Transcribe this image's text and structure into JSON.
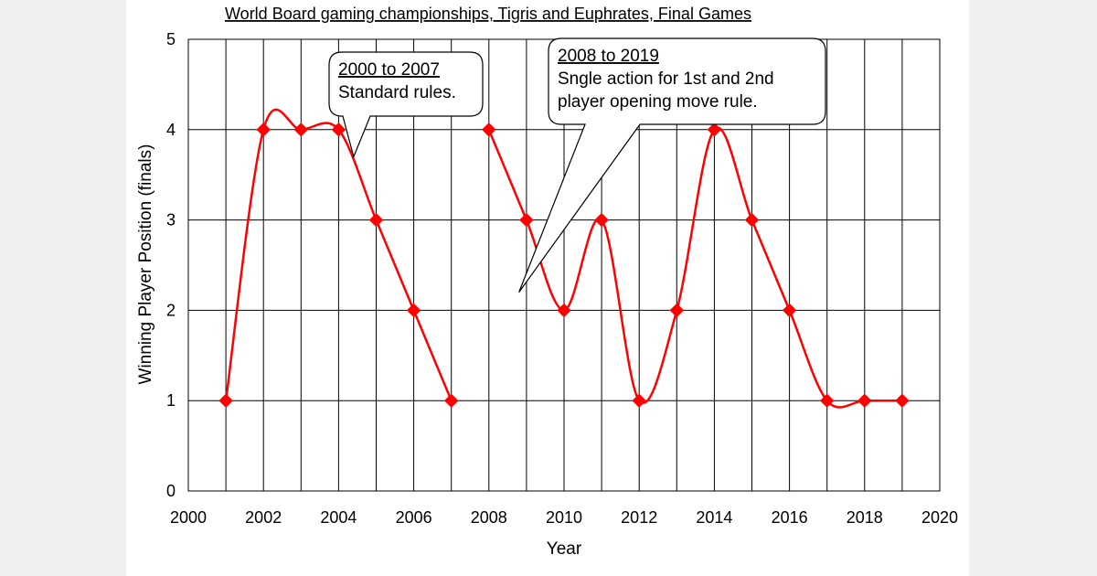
{
  "chart_data": {
    "type": "line",
    "title": "World Board gaming championships, Tigris and Euphrates, Final Games",
    "xlabel": "Year",
    "ylabel": "Winning Player Position (finals)",
    "xlim": [
      2000,
      2020
    ],
    "ylim": [
      0,
      5
    ],
    "xticks": [
      2000,
      2002,
      2004,
      2006,
      2008,
      2010,
      2012,
      2014,
      2016,
      2018,
      2020
    ],
    "yticks": [
      0,
      1,
      2,
      3,
      4,
      5
    ],
    "grid": true,
    "smoothed": true,
    "series": [
      {
        "color": "#ff0000",
        "marker": "diamond",
        "segments": [
          [
            [
              2001,
              1
            ],
            [
              2002,
              4
            ],
            [
              2003,
              4
            ],
            [
              2004,
              4
            ],
            [
              2005,
              3
            ],
            [
              2006,
              2
            ],
            [
              2007,
              1
            ]
          ],
          [
            [
              2008,
              4
            ],
            [
              2009,
              3
            ],
            [
              2010,
              2
            ],
            [
              2011,
              3
            ],
            [
              2012,
              1
            ],
            [
              2013,
              2
            ],
            [
              2014,
              4
            ],
            [
              2015,
              3
            ],
            [
              2016,
              2
            ],
            [
              2017,
              1
            ],
            [
              2018,
              1
            ],
            [
              2019,
              1
            ]
          ]
        ]
      }
    ],
    "annotations": [
      {
        "heading": "2000 to 2007 ",
        "lines": [
          "Standard rules."
        ],
        "points_to": [
          2004.4,
          3.7
        ]
      },
      {
        "heading": "2008 to 2019",
        "lines": [
          "Sngle action for 1st and 2nd",
          "player opening move rule."
        ],
        "points_to": [
          2008.8,
          2.2
        ]
      }
    ]
  }
}
